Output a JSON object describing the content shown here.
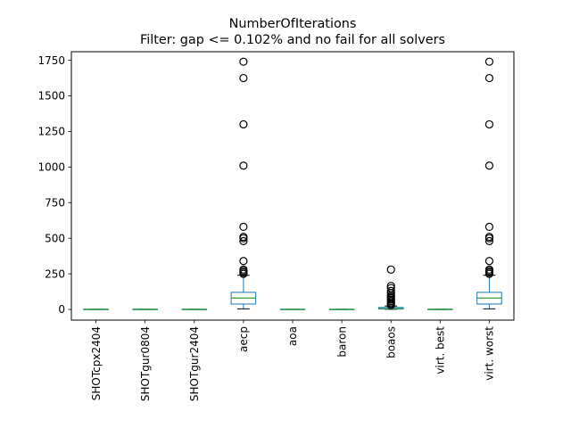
{
  "chart_data": {
    "type": "box",
    "title": "NumberOfIterations",
    "subtitle": "Filter: gap <= 0.102% and no fail for all solvers",
    "xlabel": "",
    "ylabel": "",
    "ylim": [
      -75,
      1810
    ],
    "yticks": [
      0,
      250,
      500,
      750,
      1000,
      1250,
      1500,
      1750
    ],
    "grid": false,
    "colors": {
      "box": "#1f77b4",
      "median": "#2ca02c",
      "whisker": "#1f77b4",
      "flier": "#000000"
    },
    "categories": [
      "SHOTcpx2404",
      "SHOTgur0804",
      "SHOTgur2404",
      "aecp",
      "aoa",
      "baron",
      "boaos",
      "virt. best",
      "virt. worst"
    ],
    "boxes": [
      {
        "q1": 1,
        "median": 1,
        "q3": 1,
        "whislo": 1,
        "whishi": 1,
        "fliers": []
      },
      {
        "q1": 1,
        "median": 1,
        "q3": 1,
        "whislo": 1,
        "whishi": 1,
        "fliers": []
      },
      {
        "q1": 1,
        "median": 1,
        "q3": 1,
        "whislo": 1,
        "whishi": 1,
        "fliers": []
      },
      {
        "q1": 38,
        "median": 80,
        "q3": 120,
        "whislo": 4,
        "whishi": 240,
        "fliers": [
          250,
          260,
          270,
          280,
          340,
          480,
          500,
          510,
          580,
          1010,
          1300,
          1625,
          1740
        ]
      },
      {
        "q1": 1,
        "median": 1,
        "q3": 1,
        "whislo": 1,
        "whishi": 1,
        "fliers": []
      },
      {
        "q1": 1,
        "median": 1,
        "q3": 1,
        "whislo": 1,
        "whishi": 1,
        "fliers": []
      },
      {
        "q1": 3,
        "median": 6,
        "q3": 14,
        "whislo": 1,
        "whishi": 24,
        "fliers": [
          30,
          40,
          50,
          60,
          70,
          80,
          90,
          100,
          115,
          130,
          150,
          165,
          280
        ]
      },
      {
        "q1": 1,
        "median": 1,
        "q3": 1,
        "whislo": 1,
        "whishi": 1,
        "fliers": []
      },
      {
        "q1": 38,
        "median": 80,
        "q3": 120,
        "whislo": 4,
        "whishi": 240,
        "fliers": [
          250,
          260,
          270,
          280,
          340,
          480,
          500,
          510,
          580,
          1010,
          1300,
          1625,
          1740
        ]
      }
    ]
  }
}
